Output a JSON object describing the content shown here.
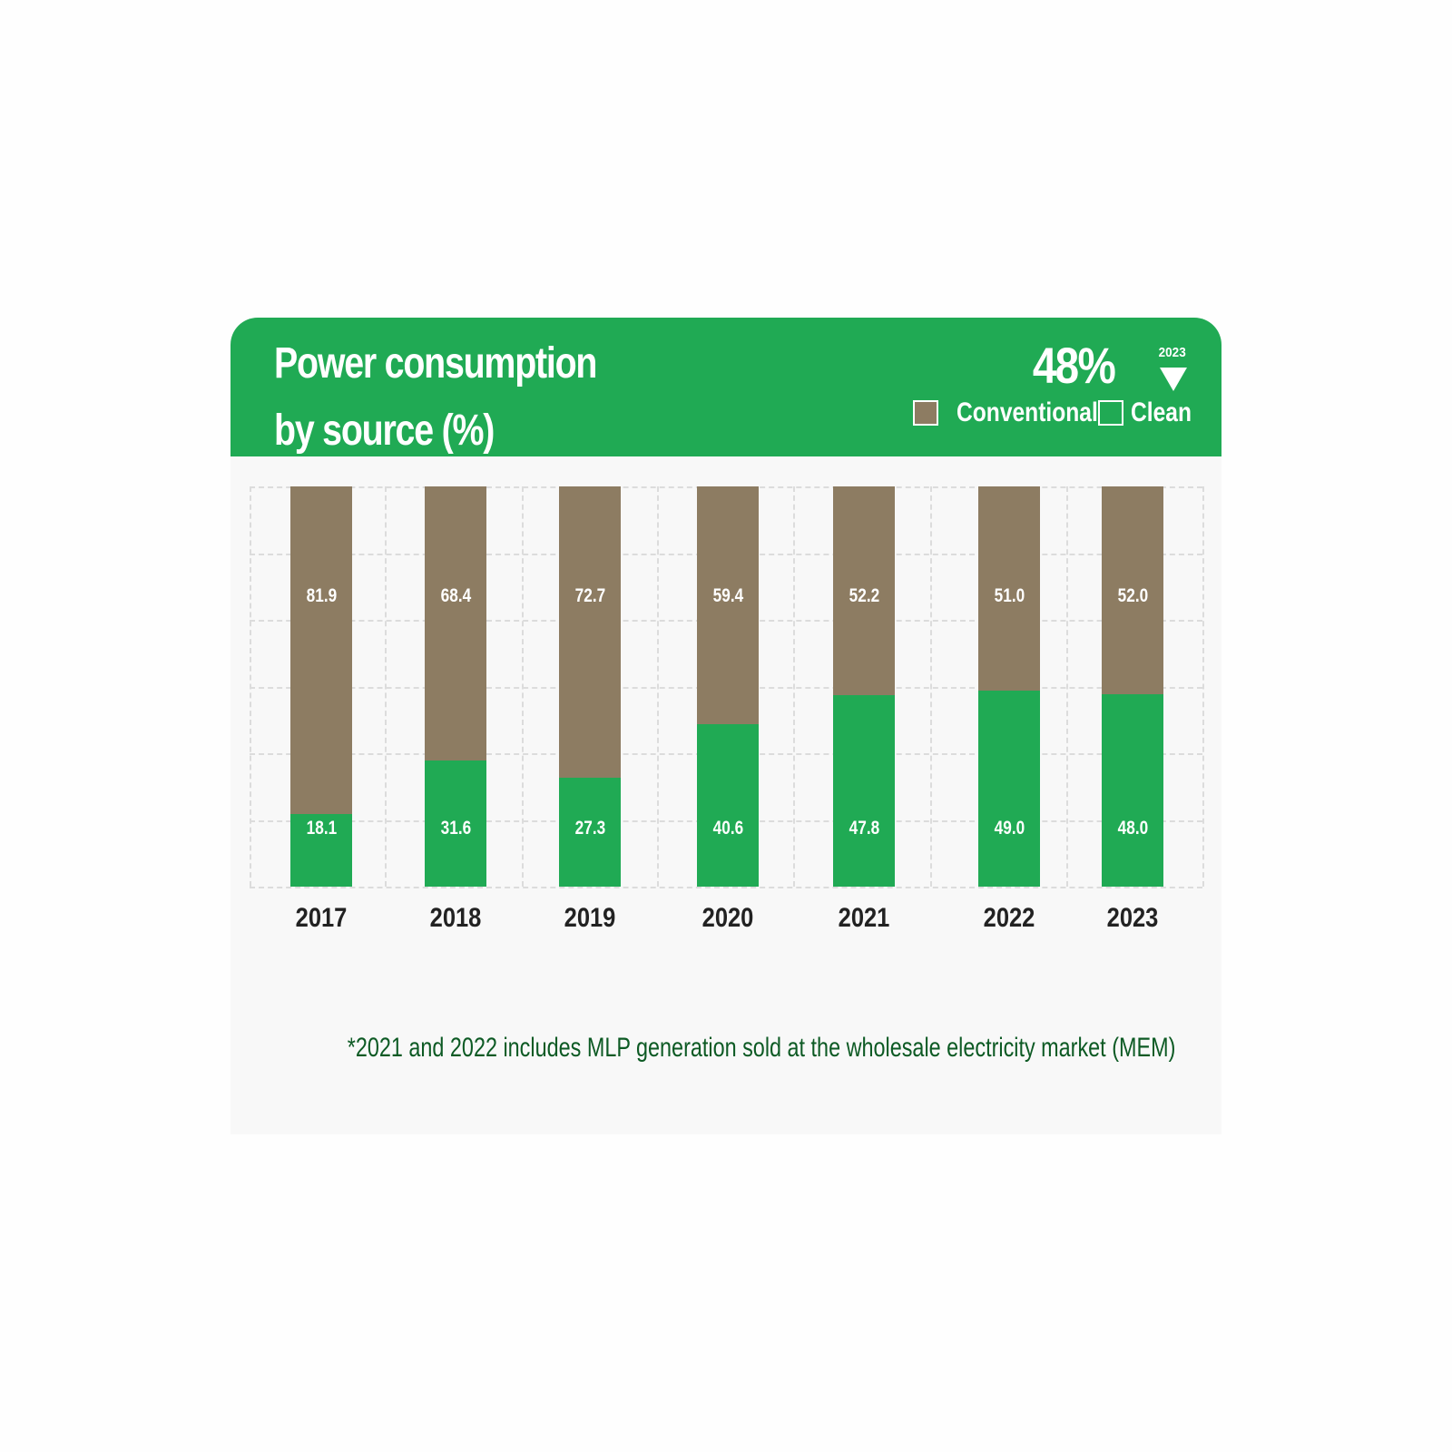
{
  "header": {
    "title_line1": "Power consumption",
    "title_line2": "by source (%)",
    "kpi_value": "48%",
    "kpi_year": "2023",
    "kpi_indicator": "down-triangle-icon",
    "legend": [
      {
        "label": "Conventional",
        "color": "#8d7c62"
      },
      {
        "label": "Clean",
        "color": "#20aa54"
      }
    ]
  },
  "colors": {
    "header_bg": "#20aa54",
    "conventional": "#8d7c62",
    "clean": "#20aa54",
    "footnote": "#0d5a24",
    "card_bg": "#f8f8f8"
  },
  "footnote": "*2021 and 2022 includes MLP generation sold at the wholesale electricity market (MEM)",
  "chart_data": {
    "type": "bar",
    "stacked": true,
    "title": "Power consumption by source (%)",
    "categories": [
      "2017",
      "2018",
      "2019",
      "2020",
      "2021",
      "2022",
      "2023"
    ],
    "series": [
      {
        "name": "Clean",
        "values": [
          18.1,
          31.6,
          27.3,
          40.6,
          47.8,
          49.0,
          48.0
        ]
      },
      {
        "name": "Conventional",
        "values": [
          81.9,
          68.4,
          72.7,
          59.4,
          52.2,
          51.0,
          52.0
        ]
      }
    ],
    "value_labels": {
      "clean": [
        "18.1",
        "31.6",
        "27.3",
        "40.6",
        "47.8",
        "49.0",
        "48.0"
      ],
      "conventional": [
        "81.9",
        "68.4",
        "72.7",
        "59.4",
        "52.2",
        "51.0",
        "52.0"
      ]
    },
    "xlabel": "",
    "ylabel": "",
    "ylim": [
      0,
      100
    ],
    "grid": true,
    "legend_position": "top-right",
    "annotation": "48% (2023)"
  }
}
